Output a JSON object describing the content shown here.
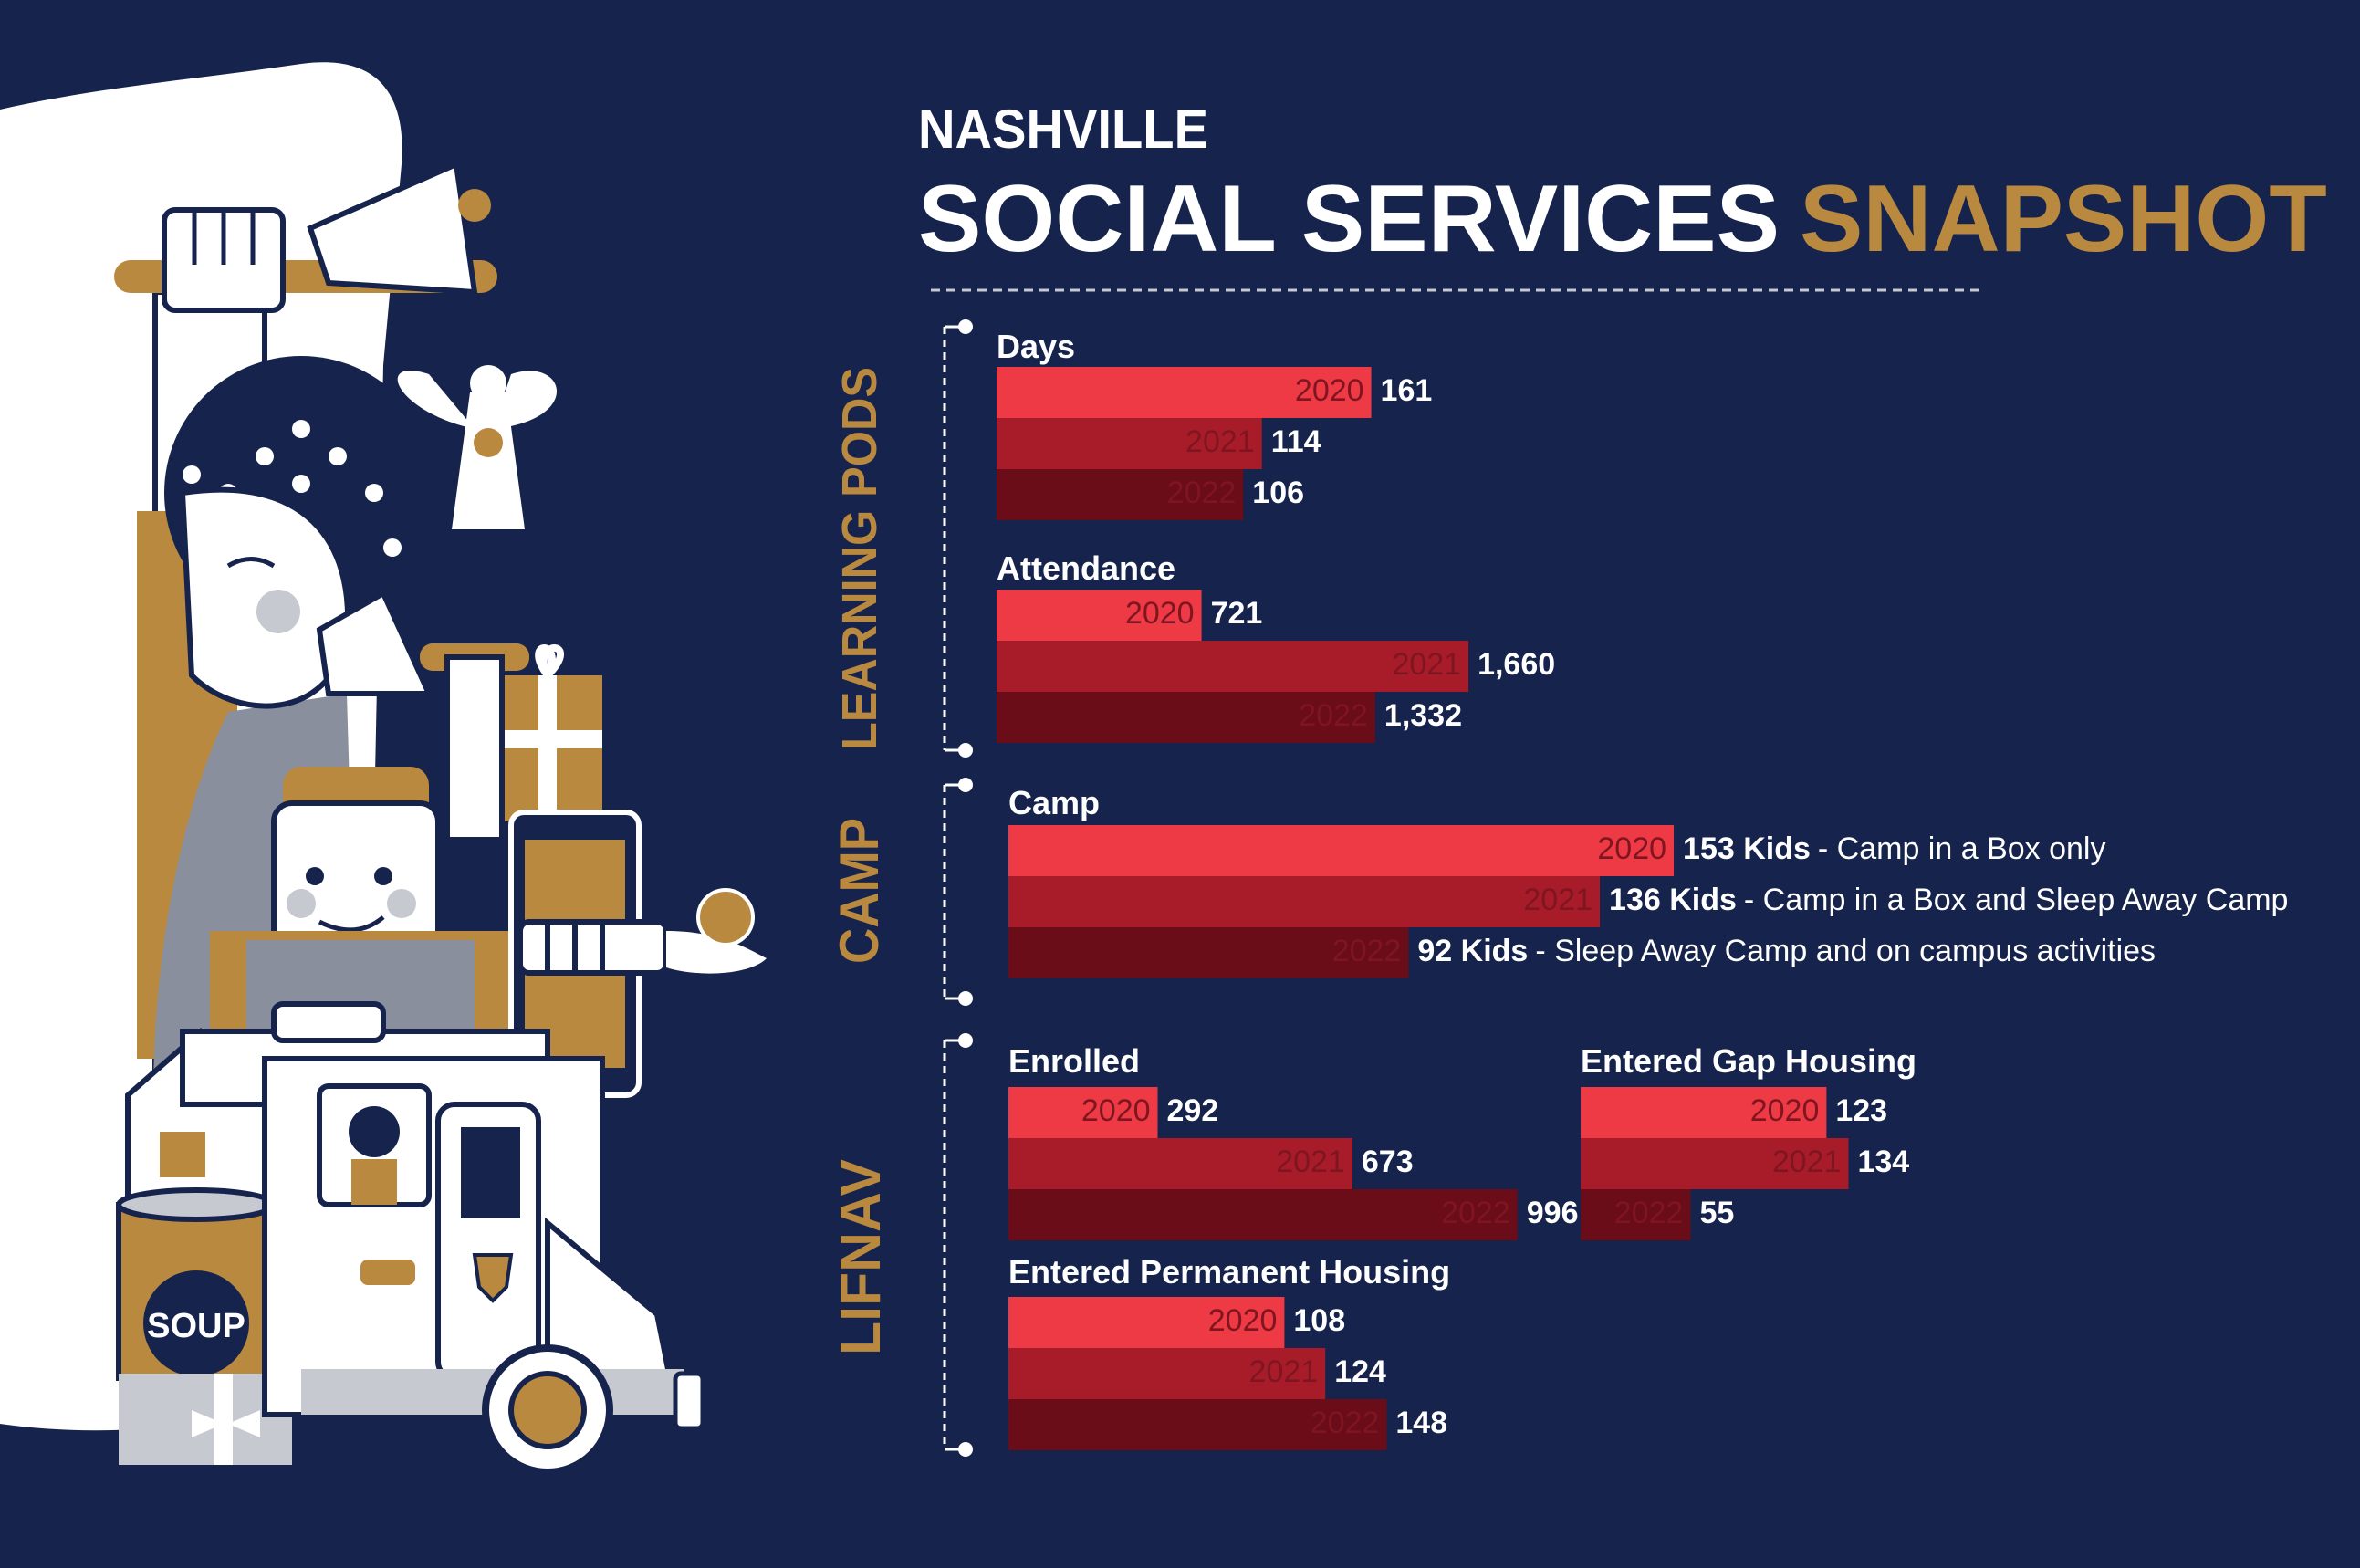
{
  "title": {
    "line1": "NASHVILLE",
    "line2_white": "SOCIAL SERVICES",
    "line2_gold": "SNAPSHOT"
  },
  "illustration": {
    "soup_label": "SOUP"
  },
  "colors": {
    "background": "#16244d",
    "gold": "#b8893e",
    "y2020": "#ee3a44",
    "y2021": "#a81c2a",
    "y2022": "#6a0d18",
    "year_text": "#7e1521"
  },
  "chart_data": [
    {
      "type": "bar",
      "panel": "LEARNING PODS",
      "title": "Days",
      "categories": [
        "2020",
        "2021",
        "2022"
      ],
      "values": [
        161,
        114,
        106
      ],
      "labels": [
        "161",
        "114",
        "106"
      ]
    },
    {
      "type": "bar",
      "panel": "LEARNING PODS",
      "title": "Attendance",
      "categories": [
        "2020",
        "2021",
        "2022"
      ],
      "values": [
        721,
        1660,
        1332
      ],
      "labels": [
        "721",
        "1,660",
        "1,332"
      ]
    },
    {
      "type": "bar",
      "panel": "CAMP",
      "title": "Camp",
      "categories": [
        "2020",
        "2021",
        "2022"
      ],
      "values": [
        153,
        136,
        92
      ],
      "labels": [
        "153 Kids",
        "136 Kids",
        "92 Kids"
      ],
      "notes": [
        "- Camp in a Box only",
        "- Camp in a Box and Sleep Away Camp",
        "- Sleep Away Camp and on campus activities"
      ]
    },
    {
      "type": "bar",
      "panel": "LIFNAV",
      "title": "Enrolled",
      "categories": [
        "2020",
        "2021",
        "2022"
      ],
      "values": [
        292,
        673,
        996
      ],
      "labels": [
        "292",
        "673",
        "996"
      ]
    },
    {
      "type": "bar",
      "panel": "LIFNAV",
      "title": "Entered Gap Housing",
      "categories": [
        "2020",
        "2021",
        "2022"
      ],
      "values": [
        123,
        134,
        55
      ],
      "labels": [
        "123",
        "134",
        "55"
      ]
    },
    {
      "type": "bar",
      "panel": "LIFNAV",
      "title": "Entered Permanent Housing",
      "categories": [
        "2020",
        "2021",
        "2022"
      ],
      "values": [
        108,
        124,
        148
      ],
      "labels": [
        "108",
        "124",
        "148"
      ]
    }
  ]
}
